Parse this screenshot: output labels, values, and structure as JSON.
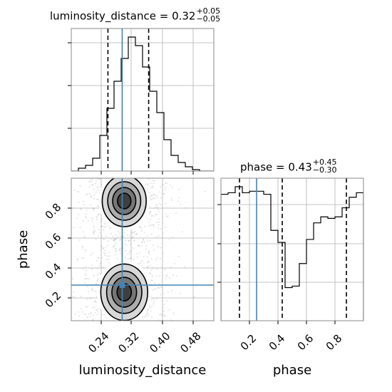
{
  "chart_data": {
    "type": "corner",
    "parameters": [
      "luminosity_distance",
      "phase"
    ],
    "panels": [
      {
        "id": "hist-luminosity_distance",
        "type": "histogram",
        "title": {
          "name": "luminosity_distance",
          "value": "0.32",
          "plus": "+0.05",
          "minus": "−0.05"
        },
        "xlim": [
          0.18,
          0.53
        ],
        "bins": [
          0.18,
          0.1975,
          0.215,
          0.2325,
          0.25,
          0.2675,
          0.285,
          0.3025,
          0.32,
          0.3375,
          0.355,
          0.3725,
          0.39,
          0.4075,
          0.425,
          0.4425,
          0.46,
          0.4775,
          0.495,
          0.5125,
          0.53
        ],
        "counts": [
          0,
          2,
          4,
          9,
          25,
          44,
          63,
          79,
          94,
          88,
          73,
          56,
          41,
          22,
          11,
          6,
          3,
          1,
          0,
          0
        ],
        "quantile_lines": [
          0.27,
          0.37
        ],
        "truth": 0.305,
        "grid": true
      },
      {
        "id": "hist-phase",
        "type": "histogram",
        "title": {
          "name": "phase",
          "value": "0.43",
          "plus": "+0.45",
          "minus": "−0.30"
        },
        "xlim": [
          0.0,
          1.0
        ],
        "bins": [
          0.0,
          0.05,
          0.1,
          0.15,
          0.2,
          0.25,
          0.3,
          0.35,
          0.4,
          0.45,
          0.5,
          0.55,
          0.6,
          0.65,
          0.7,
          0.75,
          0.8,
          0.85,
          0.9,
          0.95,
          1.0
        ],
        "counts": [
          84,
          85,
          89,
          85,
          86,
          86,
          84,
          60,
          52,
          22,
          23,
          38,
          54,
          65,
          69,
          68,
          69,
          75,
          82,
          85
        ],
        "quantile_lines": [
          0.13,
          0.43,
          0.88
        ],
        "truth": 0.25,
        "xticks": [
          "0.2",
          "0.4",
          "0.6",
          "0.8"
        ],
        "xlabel": "phase",
        "grid": true
      },
      {
        "id": "scatter-2d",
        "type": "2d-density",
        "x_param": "luminosity_distance",
        "y_param": "phase",
        "xlim": [
          0.18,
          0.53
        ],
        "ylim": [
          0.0,
          1.0
        ],
        "xticks": [
          "0.24",
          "0.32",
          "0.40",
          "0.48"
        ],
        "yticks": [
          "0.2",
          "0.4",
          "0.6",
          "0.8"
        ],
        "xlabel": "luminosity_distance",
        "ylabel": "phase",
        "modes": [
          {
            "x": 0.31,
            "y": 0.84,
            "sx": 0.03,
            "sy": 0.1
          },
          {
            "x": 0.31,
            "y": 0.2,
            "sx": 0.032,
            "sy": 0.11
          }
        ],
        "truth": {
          "x": 0.305,
          "y": 0.25
        },
        "grid": true
      }
    ]
  }
}
